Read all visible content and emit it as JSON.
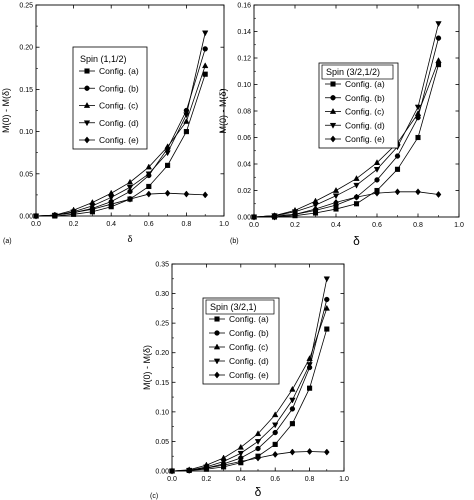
{
  "chart_data": [
    {
      "type": "line",
      "panel_label": "(a)",
      "xlabel": "δ",
      "ylabel": "M(0) - M(δ)",
      "xlim": [
        0.0,
        1.0
      ],
      "ylim": [
        0.0,
        0.25
      ],
      "xticks": [
        "0.0",
        "0.2",
        "0.4",
        "0.6",
        "0.8",
        "1.0"
      ],
      "yticks": [
        "0.00",
        "0.05",
        "0.10",
        "0.15",
        "0.20",
        "0.25"
      ],
      "legend_title": "Spin (1,1/2)",
      "legend_position": "upper-left",
      "grid": false,
      "x": [
        0.0,
        0.1,
        0.2,
        0.3,
        0.4,
        0.5,
        0.6,
        0.7,
        0.8,
        0.9
      ],
      "series": [
        {
          "name": "Config. (a)",
          "marker": "square",
          "values": [
            0.0,
            0.0,
            0.002,
            0.005,
            0.011,
            0.02,
            0.035,
            0.06,
            0.1,
            0.168
          ]
        },
        {
          "name": "Config. (b)",
          "marker": "circle",
          "values": [
            0.0,
            0.001,
            0.004,
            0.009,
            0.017,
            0.029,
            0.048,
            0.08,
            0.125,
            0.198
          ]
        },
        {
          "name": "Config. (c)",
          "marker": "triangle-up",
          "values": [
            0.0,
            0.001,
            0.007,
            0.016,
            0.027,
            0.04,
            0.058,
            0.082,
            0.112,
            0.178
          ]
        },
        {
          "name": "Config. (d)",
          "marker": "triangle-down",
          "values": [
            0.0,
            0.001,
            0.005,
            0.012,
            0.022,
            0.034,
            0.05,
            0.075,
            0.12,
            0.217
          ]
        },
        {
          "name": "Config. (e)",
          "marker": "diamond",
          "values": [
            0.0,
            0.001,
            0.004,
            0.008,
            0.014,
            0.02,
            0.026,
            0.027,
            0.026,
            0.025
          ]
        }
      ]
    },
    {
      "type": "line",
      "panel_label": "(b)",
      "xlabel": "δ",
      "ylabel": "M(0) - M(δ)",
      "xlim": [
        0.0,
        1.0
      ],
      "ylim": [
        0.0,
        0.16
      ],
      "xticks": [
        "0.0",
        "0.2",
        "0.4",
        "0.6",
        "0.8",
        "1.0"
      ],
      "yticks": [
        "0.00",
        "0.02",
        "0.04",
        "0.06",
        "0.08",
        "0.10",
        "0.12",
        "0.14",
        "0.16"
      ],
      "legend_title": "Spin (3/2,1/2)",
      "legend_position": "upper-left",
      "grid": false,
      "x": [
        0.0,
        0.1,
        0.2,
        0.3,
        0.4,
        0.5,
        0.6,
        0.7,
        0.8,
        0.9
      ],
      "series": [
        {
          "name": "Config. (a)",
          "marker": "square",
          "values": [
            0.0,
            0.0,
            0.001,
            0.003,
            0.006,
            0.01,
            0.02,
            0.036,
            0.06,
            0.115
          ]
        },
        {
          "name": "Config. (b)",
          "marker": "circle",
          "values": [
            0.0,
            0.001,
            0.002,
            0.005,
            0.009,
            0.015,
            0.028,
            0.046,
            0.075,
            0.135
          ]
        },
        {
          "name": "Config. (c)",
          "marker": "triangle-up",
          "values": [
            0.0,
            0.001,
            0.005,
            0.012,
            0.02,
            0.029,
            0.041,
            0.056,
            0.078,
            0.118
          ]
        },
        {
          "name": "Config. (d)",
          "marker": "triangle-down",
          "values": [
            0.0,
            0.001,
            0.004,
            0.009,
            0.016,
            0.024,
            0.036,
            0.053,
            0.083,
            0.146
          ]
        },
        {
          "name": "Config. (e)",
          "marker": "diamond",
          "values": [
            0.0,
            0.0,
            0.002,
            0.006,
            0.011,
            0.015,
            0.018,
            0.019,
            0.019,
            0.017
          ]
        }
      ]
    },
    {
      "type": "line",
      "panel_label": "(c)",
      "xlabel": "δ",
      "ylabel": "M(0) - M(δ)",
      "xlim": [
        0.0,
        1.0
      ],
      "ylim": [
        0.0,
        0.35
      ],
      "xticks": [
        "0.0",
        "0.2",
        "0.4",
        "0.6",
        "0.8",
        "1.0"
      ],
      "yticks": [
        "0.00",
        "0.05",
        "0.10",
        "0.15",
        "0.20",
        "0.25",
        "0.30",
        "0.35"
      ],
      "legend_title": "Spin (3/2,1)",
      "legend_position": "upper-left",
      "grid": false,
      "x": [
        0.0,
        0.1,
        0.2,
        0.3,
        0.4,
        0.5,
        0.6,
        0.7,
        0.8,
        0.9
      ],
      "series": [
        {
          "name": "Config. (a)",
          "marker": "square",
          "values": [
            0.0,
            0.001,
            0.003,
            0.007,
            0.014,
            0.025,
            0.045,
            0.08,
            0.14,
            0.24
          ]
        },
        {
          "name": "Config. (b)",
          "marker": "circle",
          "values": [
            0.0,
            0.001,
            0.005,
            0.012,
            0.022,
            0.038,
            0.065,
            0.105,
            0.175,
            0.29
          ]
        },
        {
          "name": "Config. (c)",
          "marker": "triangle-up",
          "values": [
            0.0,
            0.002,
            0.01,
            0.022,
            0.04,
            0.063,
            0.095,
            0.138,
            0.19,
            0.275
          ]
        },
        {
          "name": "Config. (d)",
          "marker": "triangle-down",
          "values": [
            0.0,
            0.001,
            0.007,
            0.016,
            0.03,
            0.05,
            0.078,
            0.12,
            0.18,
            0.325
          ]
        },
        {
          "name": "Config. (e)",
          "marker": "diamond",
          "values": [
            0.0,
            0.001,
            0.005,
            0.01,
            0.016,
            0.022,
            0.028,
            0.032,
            0.033,
            0.032
          ]
        }
      ]
    }
  ]
}
